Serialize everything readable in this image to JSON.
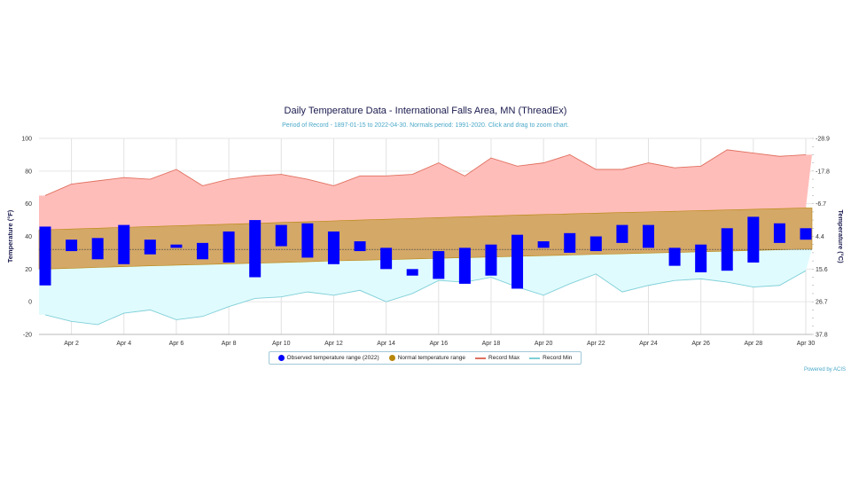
{
  "chart_data": {
    "type": "bar",
    "title": "Daily Temperature Data - International Falls Area, MN (ThreadEx)",
    "subtitle": "Period of Record - 1897-01-15 to 2022-04-30. Normals period: 1991-2020. Click and drag to zoom chart.",
    "ylabel": "Temperature (°F)",
    "y2label": "Temperature (°C)",
    "ylim": [
      -20,
      100
    ],
    "yticks": [
      -20,
      0,
      20,
      40,
      60,
      80,
      100
    ],
    "y2ticks": [
      "37.8",
      "26.7",
      "15.6",
      "4.4",
      "-6.7",
      "-17.8",
      "-28.9"
    ],
    "x": [
      1,
      2,
      3,
      4,
      5,
      6,
      7,
      8,
      9,
      10,
      11,
      12,
      13,
      14,
      15,
      16,
      17,
      18,
      19,
      20,
      21,
      22,
      23,
      24,
      25,
      26,
      27,
      28,
      29,
      30
    ],
    "xtick_labels": [
      "Apr 2",
      "Apr 4",
      "Apr 6",
      "Apr 8",
      "Apr 10",
      "Apr 12",
      "Apr 14",
      "Apr 16",
      "Apr 18",
      "Apr 20",
      "Apr 22",
      "Apr 24",
      "Apr 26",
      "Apr 28",
      "Apr 30"
    ],
    "xtick_days": [
      2,
      4,
      6,
      8,
      10,
      12,
      14,
      16,
      18,
      20,
      22,
      24,
      26,
      28,
      30
    ],
    "grid": true,
    "legend_position": "bottom",
    "series": [
      {
        "name": "Observed temperature range (2022)",
        "type": "floating-bar",
        "color": "#0000ff",
        "high": [
          46,
          38,
          39,
          47,
          38,
          35,
          36,
          43,
          50,
          47,
          48,
          43,
          37,
          33,
          20,
          31,
          33,
          35,
          41,
          37,
          42,
          40,
          47,
          47,
          33,
          35,
          45,
          52,
          48,
          45
        ],
        "low": [
          10,
          31,
          26,
          23,
          29,
          33,
          26,
          24,
          15,
          34,
          27,
          23,
          31,
          20,
          16,
          14,
          11,
          16,
          8,
          33,
          30,
          31,
          36,
          33,
          22,
          18,
          19,
          24,
          36,
          38
        ]
      },
      {
        "name": "Normal temperature range",
        "type": "band",
        "color": "#b8860b",
        "high": [
          44,
          44.5,
          45,
          45.5,
          46,
          46.5,
          47,
          47.5,
          48,
          48.5,
          49,
          49.5,
          50,
          50.5,
          51,
          51.5,
          52,
          52.5,
          53,
          53.4,
          53.8,
          54.2,
          54.6,
          55,
          55.4,
          55.8,
          56.2,
          56.6,
          57,
          57.4
        ],
        "low": [
          20,
          20.5,
          21,
          21.5,
          22,
          22.4,
          22.8,
          23.2,
          23.6,
          24,
          24.5,
          25,
          25.4,
          25.8,
          26.2,
          26.6,
          27,
          27.4,
          27.8,
          28.2,
          28.6,
          29,
          29.4,
          29.8,
          30.2,
          30.6,
          31,
          31.4,
          31.8,
          32.2
        ]
      },
      {
        "name": "Record Max",
        "type": "line",
        "color": "#e07060",
        "values": [
          65,
          72,
          74,
          76,
          75,
          81,
          71,
          75,
          77,
          78,
          75,
          71,
          77,
          77,
          78,
          85,
          77,
          88,
          83,
          85,
          90,
          81,
          81,
          85,
          82,
          83,
          93,
          91,
          89,
          90
        ]
      },
      {
        "name": "Record Min",
        "type": "line",
        "color": "#7ecfd8",
        "values": [
          -8,
          -12,
          -14,
          -7,
          -5,
          -11,
          -9,
          -3,
          2,
          3,
          6,
          4,
          7,
          0,
          5,
          13,
          12,
          15,
          9,
          4,
          11,
          17,
          6,
          10,
          13,
          14,
          12,
          9,
          10,
          19
        ]
      }
    ],
    "colors": {
      "record_fill": "#ffbdb9",
      "record_min_fill": "#e0fbfd",
      "normal_fill": "#d4a867",
      "axis_text": "#222222",
      "accent": "#1a1a4e"
    }
  },
  "legend": {
    "observed": "Observed temperature range (2022)",
    "normal": "Normal temperature range",
    "record_max": "Record Max",
    "record_min": "Record Min"
  },
  "credit": "Powered by ACIS"
}
